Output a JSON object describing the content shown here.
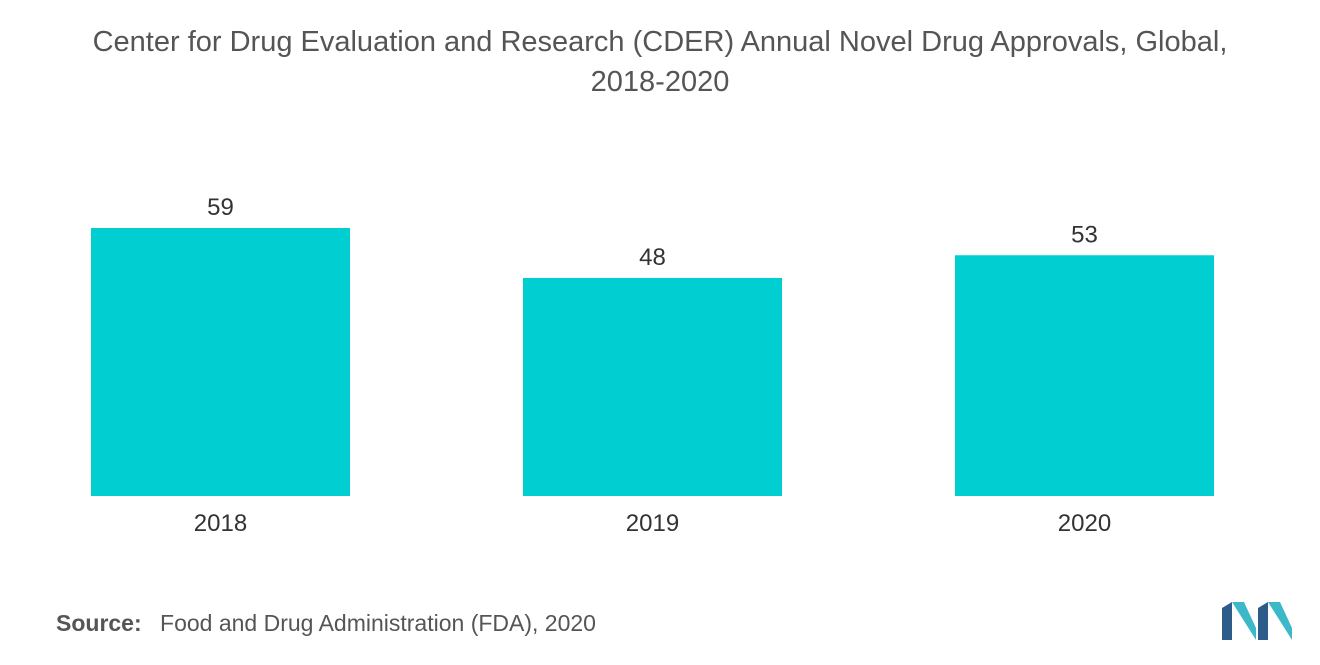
{
  "title_line1": "Center for Drug Evaluation and Research (CDER) Annual Novel Drug Approvals, Global,",
  "title_line2": "2018-2020",
  "source_label": "Source:",
  "source_text": "Food and Drug Administration (FDA), 2020",
  "colors": {
    "bar": "#00CED1",
    "logo_dark": "#2E5C8A",
    "logo_light": "#3CB9C9"
  },
  "chart_data": {
    "type": "bar",
    "categories": [
      "2018",
      "2019",
      "2020"
    ],
    "values": [
      59,
      48,
      53
    ],
    "data_labels": [
      "59",
      "48",
      "53"
    ],
    "ylim": [
      0,
      59
    ],
    "grid": false,
    "legend": "none"
  }
}
